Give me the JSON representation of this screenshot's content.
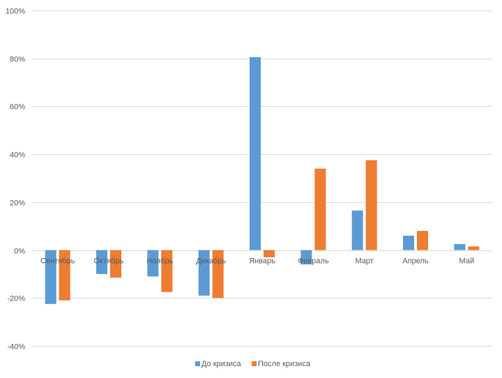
{
  "chart_data": {
    "type": "bar",
    "categories": [
      "Сентябрь",
      "Октябрь",
      "Ноябрь",
      "Декабрь",
      "Январь",
      "Февраль",
      "Март",
      "Апрель",
      "Май"
    ],
    "series": [
      {
        "name": "До кризиса",
        "color": "#5B9BD5",
        "values": [
          -22.5,
          -10,
          -11,
          -19,
          80.5,
          -6,
          16.5,
          6,
          2.5
        ]
      },
      {
        "name": "После кризиса",
        "color": "#ED7D31",
        "values": [
          -21,
          -11.5,
          -17.5,
          -20,
          -3,
          34,
          37.5,
          8,
          1.5
        ]
      }
    ],
    "ylim": [
      -40,
      100
    ],
    "yticks": [
      -40,
      -20,
      0,
      20,
      40,
      60,
      80,
      100
    ],
    "ytick_labels": [
      "-40%",
      "-20%",
      "0%",
      "20%",
      "40%",
      "60%",
      "80%",
      "100%"
    ],
    "grid": true,
    "legend_position": "bottom"
  }
}
